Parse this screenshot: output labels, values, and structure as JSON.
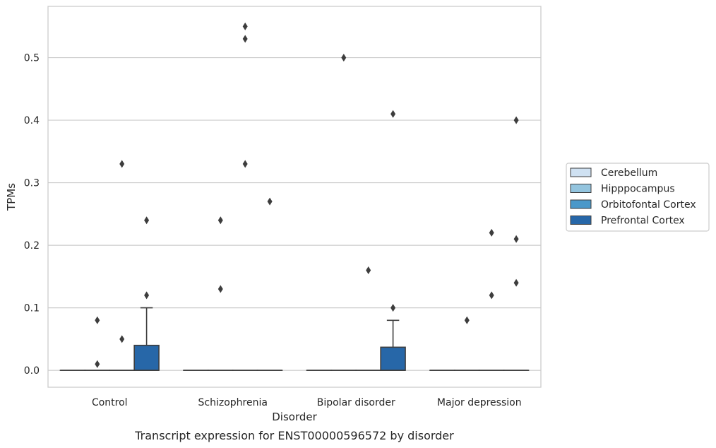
{
  "chart_data": {
    "type": "box",
    "title": "",
    "caption": "Transcript expression for ENST00000596572 by disorder",
    "xlabel": "Disorder",
    "ylabel": "TPMs",
    "ylim": [
      -0.027,
      0.582
    ],
    "yticks": [
      "0.0",
      "0.1",
      "0.2",
      "0.3",
      "0.4",
      "0.5"
    ],
    "grid": "horizontal",
    "legend_position": "right",
    "categories": [
      "Control",
      "Schizophrenia",
      "Bipolar disorder",
      "Major depression"
    ],
    "series": [
      {
        "name": "Cerebellum",
        "color": "#cfe1f2",
        "boxes": [
          {
            "q1": 0,
            "median": 0,
            "q3": 0,
            "whislo": 0,
            "whishi": 0,
            "fliers": []
          },
          {
            "q1": 0,
            "median": 0,
            "q3": 0,
            "whislo": 0,
            "whishi": 0,
            "fliers": []
          },
          {
            "q1": 0,
            "median": 0,
            "q3": 0,
            "whislo": 0,
            "whishi": 0,
            "fliers": []
          },
          {
            "q1": 0,
            "median": 0,
            "q3": 0,
            "whislo": 0,
            "whishi": 0,
            "fliers": []
          }
        ]
      },
      {
        "name": "Hipppocampus",
        "color": "#93c4de",
        "boxes": [
          {
            "q1": 0,
            "median": 0,
            "q3": 0,
            "whislo": 0,
            "whishi": 0,
            "fliers": [
              0.01,
              0.08
            ]
          },
          {
            "q1": 0,
            "median": 0,
            "q3": 0,
            "whislo": 0,
            "whishi": 0,
            "fliers": [
              0.13,
              0.24
            ]
          },
          {
            "q1": 0,
            "median": 0,
            "q3": 0,
            "whislo": 0,
            "whishi": 0,
            "fliers": [
              0.5
            ]
          },
          {
            "q1": 0,
            "median": 0,
            "q3": 0,
            "whislo": 0,
            "whishi": 0,
            "fliers": [
              0.08
            ]
          }
        ]
      },
      {
        "name": "Orbitofontal Cortex",
        "color": "#4a98c9",
        "boxes": [
          {
            "q1": 0,
            "median": 0,
            "q3": 0,
            "whislo": 0,
            "whishi": 0,
            "fliers": [
              0.05,
              0.33
            ]
          },
          {
            "q1": 0,
            "median": 0,
            "q3": 0,
            "whislo": 0,
            "whishi": 0,
            "fliers": [
              0.33,
              0.53,
              0.55
            ]
          },
          {
            "q1": 0,
            "median": 0,
            "q3": 0,
            "whislo": 0,
            "whishi": 0,
            "fliers": [
              0.16
            ]
          },
          {
            "q1": 0,
            "median": 0,
            "q3": 0,
            "whislo": 0,
            "whishi": 0,
            "fliers": [
              0.12,
              0.22
            ]
          }
        ]
      },
      {
        "name": "Prefrontal Cortex",
        "color": "#2767a8",
        "boxes": [
          {
            "q1": 0,
            "median": 0,
            "q3": 0.04,
            "whislo": 0,
            "whishi": 0.1,
            "fliers": [
              0.12,
              0.24
            ]
          },
          {
            "q1": 0,
            "median": 0,
            "q3": 0,
            "whislo": 0,
            "whishi": 0,
            "fliers": [
              0.27
            ]
          },
          {
            "q1": 0,
            "median": 0,
            "q3": 0.037,
            "whislo": 0,
            "whishi": 0.08,
            "fliers": [
              0.1,
              0.41
            ]
          },
          {
            "q1": 0,
            "median": 0,
            "q3": 0,
            "whislo": 0,
            "whishi": 0,
            "fliers": [
              0.14,
              0.21,
              0.4
            ]
          }
        ]
      }
    ]
  }
}
